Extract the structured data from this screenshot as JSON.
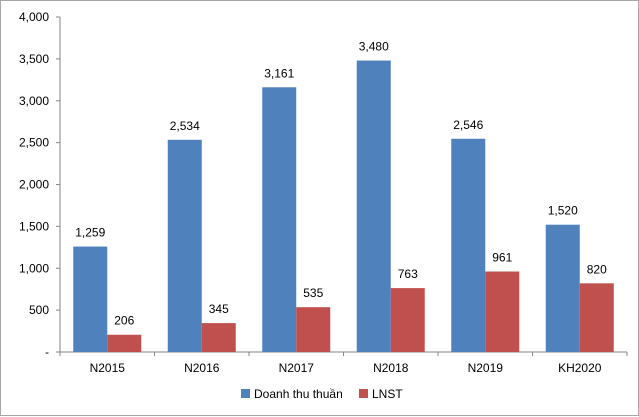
{
  "chart_data": {
    "type": "bar",
    "categories": [
      "N2015",
      "N2016",
      "N2017",
      "N2018",
      "N2019",
      "KH2020"
    ],
    "series": [
      {
        "name": "Doanh thu thuần",
        "color": "#4F81BD",
        "values": [
          1259,
          2534,
          3161,
          3480,
          2546,
          1520
        ],
        "labels": [
          "1,259",
          "2,534",
          "3,161",
          "3,480",
          "2,546",
          "1,520"
        ]
      },
      {
        "name": "LNST",
        "color": "#C0504D",
        "values": [
          206,
          345,
          535,
          763,
          961,
          820
        ],
        "labels": [
          "206",
          "345",
          "535",
          "763",
          "961",
          "820"
        ]
      }
    ],
    "ylim": [
      0,
      4000
    ],
    "yticks": [
      0,
      500,
      1000,
      1500,
      2000,
      2500,
      3000,
      3500,
      4000
    ],
    "ytick_labels": [
      "-",
      "500",
      "1,000",
      "1,500",
      "2,000",
      "2,500",
      "3,000",
      "3,500",
      "4,000"
    ],
    "grid": false,
    "legend": "bottom",
    "title": "",
    "xlabel": "",
    "ylabel": ""
  }
}
